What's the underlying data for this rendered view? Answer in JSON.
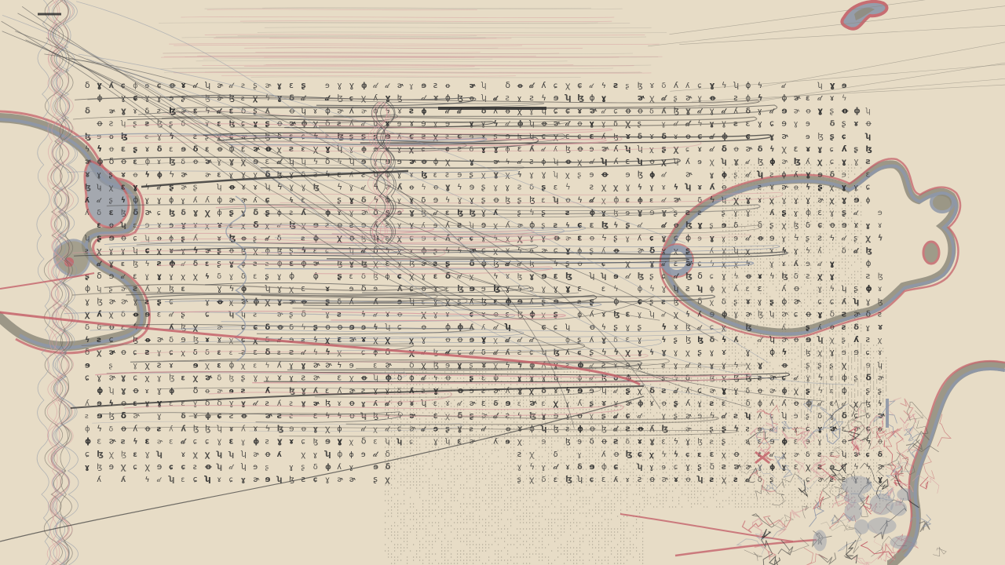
{
  "artwork": {
    "palette": {
      "background": "#e7dcc6",
      "ink": "#2f2f2f",
      "slate": "#8e97a8",
      "grey": "#8e8b7b",
      "red": "#c4626a",
      "pink": "#d79b9f"
    },
    "glyph_set": [
      "𝒹",
      "ɤ",
      "ɣ",
      "ꭓ",
      "ꝋ",
      "δ",
      "ϟ",
      "ɛ",
      "ƨ",
      "ʮ",
      "ɚ",
      "ɸ",
      "ɣ",
      "ʎ",
      "ɘ",
      "ɕ",
      "ɮ",
      "ʂ"
    ]
  }
}
